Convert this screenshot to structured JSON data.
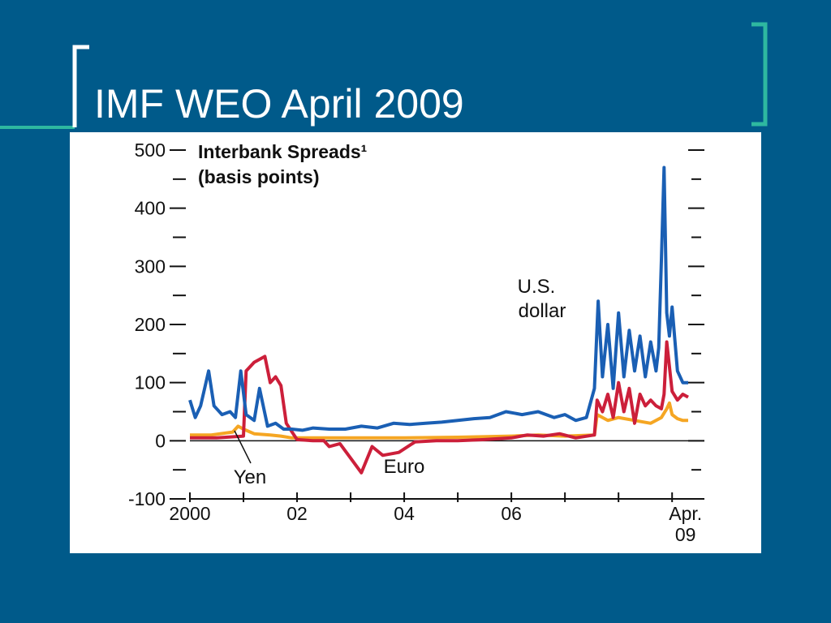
{
  "slide": {
    "title": "IMF WEO April 2009"
  },
  "colors": {
    "background": "#005a8a",
    "accent": "#2eb8a0",
    "panel": "#ffffff"
  },
  "chart_data": {
    "type": "line",
    "title": "Interbank Spreads¹",
    "subtitle": "(basis points)",
    "ylim": [
      -100,
      500
    ],
    "y_ticks": [
      -100,
      0,
      100,
      200,
      300,
      400,
      500
    ],
    "y_tick_labels": [
      "-100",
      "0",
      "100",
      "200",
      "300",
      "400",
      "500"
    ],
    "xlim": [
      2000,
      2009.3
    ],
    "x_ticks": [
      2000,
      2002,
      2004,
      2006,
      2009.25
    ],
    "x_tick_labels": [
      "2000",
      "02",
      "04",
      "06",
      "Apr.\n09"
    ],
    "grid": false,
    "series": [
      {
        "name": "U.S. dollar",
        "color": "#1a5fb4",
        "x": [
          2000.0,
          2000.1,
          2000.2,
          2000.35,
          2000.45,
          2000.6,
          2000.75,
          2000.85,
          2000.95,
          2001.05,
          2001.2,
          2001.3,
          2001.45,
          2001.6,
          2001.75,
          2001.9,
          2002.1,
          2002.3,
          2002.6,
          2002.9,
          2003.2,
          2003.5,
          2003.8,
          2004.1,
          2004.4,
          2004.7,
          2005.0,
          2005.3,
          2005.6,
          2005.9,
          2006.2,
          2006.5,
          2006.8,
          2007.0,
          2007.2,
          2007.4,
          2007.55,
          2007.62,
          2007.7,
          2007.8,
          2007.9,
          2008.0,
          2008.1,
          2008.2,
          2008.3,
          2008.4,
          2008.5,
          2008.6,
          2008.7,
          2008.75,
          2008.8,
          2008.85,
          2008.9,
          2008.95,
          2009.0,
          2009.1,
          2009.2,
          2009.3
        ],
        "values": [
          70,
          40,
          60,
          120,
          60,
          45,
          50,
          40,
          120,
          45,
          35,
          90,
          25,
          30,
          20,
          20,
          18,
          22,
          20,
          20,
          25,
          22,
          30,
          28,
          30,
          32,
          35,
          38,
          40,
          50,
          45,
          50,
          40,
          45,
          35,
          40,
          90,
          240,
          110,
          200,
          90,
          220,
          110,
          190,
          120,
          180,
          110,
          170,
          120,
          160,
          310,
          470,
          220,
          180,
          230,
          120,
          100,
          100
        ]
      },
      {
        "name": "Euro",
        "color": "#cc1f3a",
        "x": [
          2000.0,
          2000.5,
          2001.0,
          2001.05,
          2001.1,
          2001.2,
          2001.4,
          2001.5,
          2001.6,
          2001.7,
          2001.8,
          2002.0,
          2002.3,
          2002.5,
          2002.6,
          2002.8,
          2003.0,
          2003.2,
          2003.4,
          2003.6,
          2003.9,
          2004.2,
          2004.6,
          2005.0,
          2005.5,
          2006.0,
          2006.3,
          2006.6,
          2006.9,
          2007.2,
          2007.55,
          2007.6,
          2007.7,
          2007.8,
          2007.9,
          2008.0,
          2008.1,
          2008.2,
          2008.3,
          2008.4,
          2008.5,
          2008.6,
          2008.7,
          2008.8,
          2008.85,
          2008.9,
          2009.0,
          2009.1,
          2009.2,
          2009.3
        ],
        "values": [
          5,
          5,
          8,
          120,
          125,
          135,
          145,
          100,
          110,
          95,
          30,
          2,
          0,
          0,
          -10,
          -5,
          -30,
          -55,
          -10,
          -25,
          -20,
          -2,
          0,
          0,
          2,
          5,
          10,
          8,
          12,
          5,
          10,
          70,
          50,
          80,
          40,
          100,
          50,
          90,
          30,
          80,
          60,
          70,
          60,
          55,
          80,
          170,
          85,
          70,
          80,
          75
        ]
      },
      {
        "name": "Yen",
        "color": "#f5a623",
        "x": [
          2000.0,
          2000.4,
          2000.8,
          2000.9,
          2001.0,
          2001.2,
          2001.5,
          2001.7,
          2001.9,
          2002.5,
          2003.0,
          2004.0,
          2005.0,
          2006.0,
          2006.5,
          2007.0,
          2007.55,
          2007.6,
          2007.8,
          2008.0,
          2008.3,
          2008.6,
          2008.8,
          2008.9,
          2008.95,
          2009.0,
          2009.1,
          2009.2,
          2009.3
        ],
        "values": [
          10,
          10,
          15,
          25,
          20,
          12,
          10,
          8,
          5,
          5,
          5,
          5,
          6,
          8,
          10,
          8,
          10,
          45,
          35,
          40,
          35,
          30,
          40,
          55,
          65,
          45,
          38,
          35,
          35
        ]
      }
    ],
    "annotations": [
      {
        "text": "U.S.",
        "series": "U.S. dollar"
      },
      {
        "text": "dollar",
        "series": "U.S. dollar"
      },
      {
        "text": "Euro",
        "series": "Euro"
      },
      {
        "text": "Yen",
        "series": "Yen"
      }
    ]
  }
}
